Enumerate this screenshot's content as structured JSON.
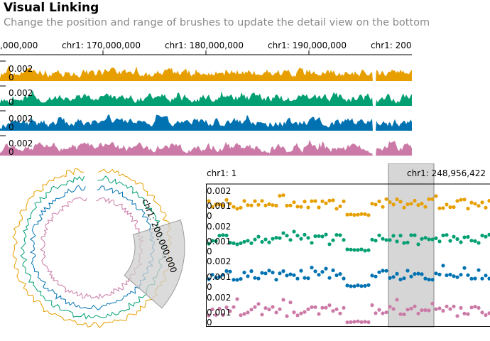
{
  "title": "Visual Linking",
  "subtitle": "Change the position and range of brushes to update the detail view on the bottom",
  "colors": {
    "series": [
      "#E79F00",
      "#029F73",
      "#0072B2",
      "#CB7AA7"
    ],
    "brush_fill": "#cfcfcf",
    "axis": "#000000"
  },
  "top_view": {
    "x_ticks": [
      ",000,000",
      "chr1: 170,000,000",
      "chr1: 180,000,000",
      "chr1: 190,000,000",
      "chr1: 200"
    ],
    "y_tick_labels": [
      "0.002",
      "0"
    ],
    "gap_fraction": 0.908
  },
  "circular_view": {
    "brush_label": "chr1: 200,000,000"
  },
  "detail_view": {
    "start_label": "chr1: 1",
    "end_label": "chr1: 248,956,422",
    "y_tick_labels": [
      "0.002",
      "0.001",
      "0"
    ],
    "brush_start_fraction": 0.643,
    "brush_end_fraction": 0.803
  }
}
